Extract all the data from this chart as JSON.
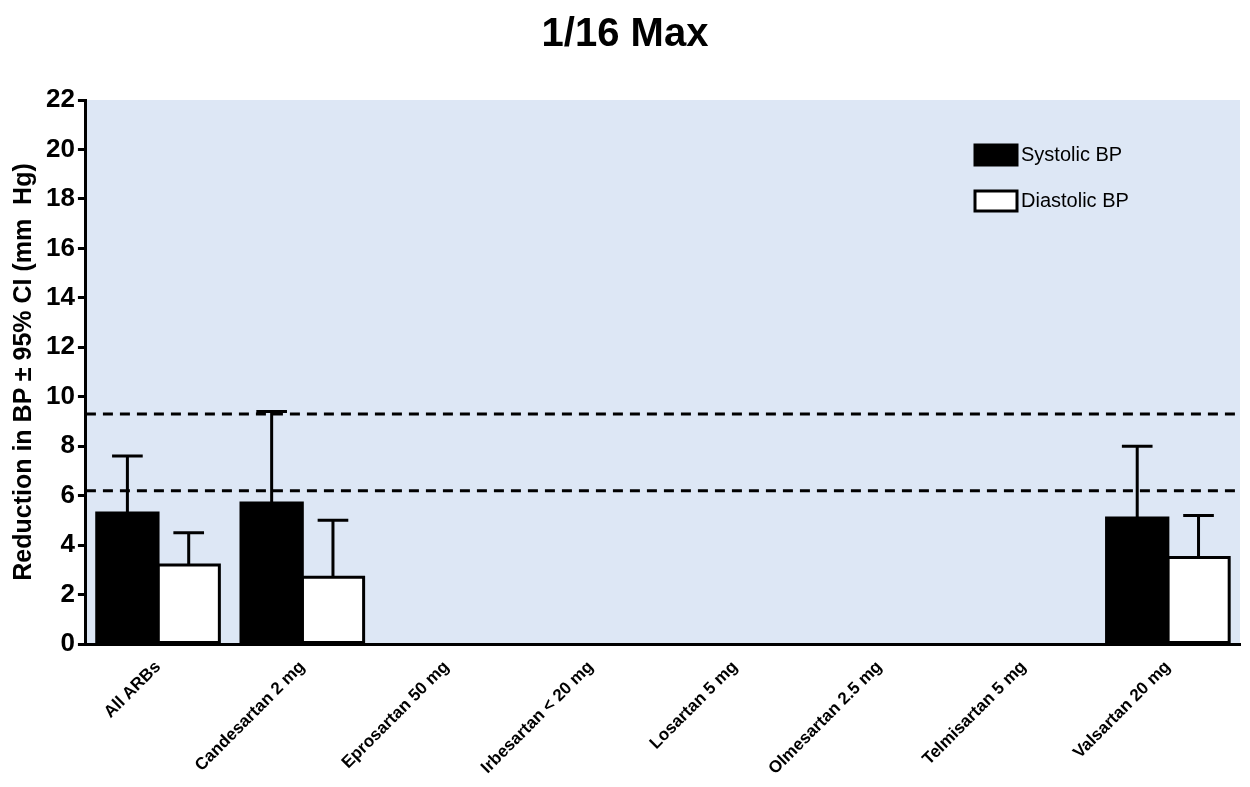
{
  "chart_data": {
    "type": "bar",
    "title": "1/16 Max",
    "ylabel": "Reduction in BP ± 95% CI (mm  Hg)",
    "categories": [
      "All ARBs",
      "Candesartan 2 mg",
      "Eprosartan 50 mg",
      "Irbesartan < 20 mg",
      "Losartan 5 mg",
      "Olmesartan 2.5 mg",
      "Telmisartan 5 mg",
      "Valsartan 20 mg"
    ],
    "series": [
      {
        "name": "Systolic BP",
        "color": "#000000",
        "values": [
          5.3,
          5.7,
          null,
          null,
          null,
          null,
          null,
          5.1
        ],
        "errors": [
          [
            5.3,
            7.6
          ],
          [
            5.7,
            9.4
          ],
          null,
          null,
          null,
          null,
          null,
          [
            5.1,
            8.0
          ]
        ]
      },
      {
        "name": "Diastolic BP",
        "color": "#ffffff",
        "values": [
          3.2,
          2.7,
          null,
          null,
          null,
          null,
          null,
          3.5
        ],
        "errors": [
          [
            3.2,
            4.5
          ],
          [
            2.7,
            5.0
          ],
          null,
          null,
          null,
          null,
          null,
          [
            3.5,
            5.2
          ]
        ]
      }
    ],
    "ylim": [
      0,
      22
    ],
    "yticks": [
      0,
      2,
      4,
      6,
      8,
      10,
      12,
      14,
      16,
      18,
      20,
      22
    ],
    "ref_lines": [
      {
        "axis": "y",
        "value": 9.3,
        "color": "#000000",
        "line_style": "dashed"
      },
      {
        "axis": "y",
        "value": 6.2,
        "color": "#000000",
        "line_style": "dashed"
      }
    ],
    "grid": false,
    "legend": "top right"
  }
}
